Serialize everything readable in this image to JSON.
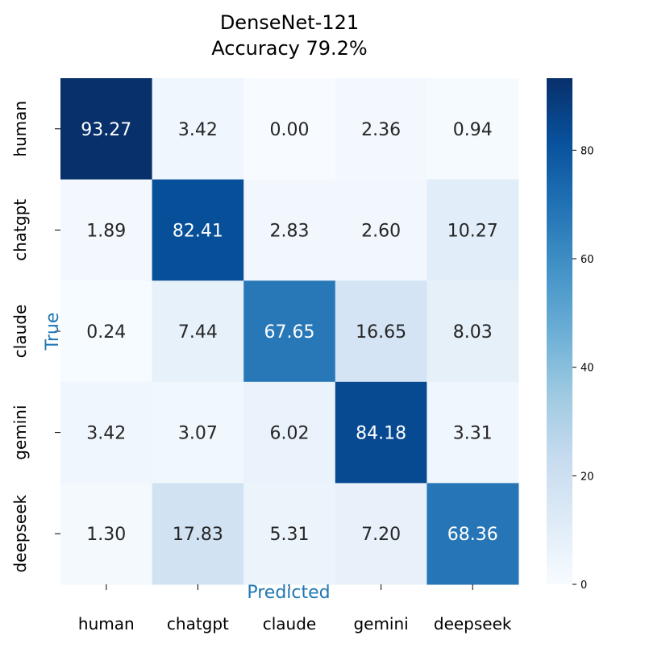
{
  "chart_data": {
    "type": "heatmap",
    "title": "DenseNet-121",
    "subtitle": "Accuracy 79.2%",
    "xlabel": "Predicted",
    "ylabel": "True",
    "x_categories": [
      "human",
      "chatgpt",
      "claude",
      "gemini",
      "deepseek"
    ],
    "y_categories": [
      "human",
      "chatgpt",
      "claude",
      "gemini",
      "deepseek"
    ],
    "values": [
      [
        93.27,
        3.42,
        0.0,
        2.36,
        0.94
      ],
      [
        1.89,
        82.41,
        2.83,
        2.6,
        10.27
      ],
      [
        0.24,
        7.44,
        67.65,
        16.65,
        8.03
      ],
      [
        3.42,
        3.07,
        6.02,
        84.18,
        3.31
      ],
      [
        1.3,
        17.83,
        5.31,
        7.2,
        68.36
      ]
    ],
    "value_range": [
      0,
      93.27
    ],
    "colorbar_ticks": [
      0,
      20,
      40,
      60,
      80
    ],
    "colormap": "Blues",
    "colors": {
      "low": "#f7fbff",
      "high": "#08306b",
      "axis_label": "#1f77b4",
      "text_dark": "#262626",
      "text_light": "#ffffff"
    },
    "grid": false
  }
}
